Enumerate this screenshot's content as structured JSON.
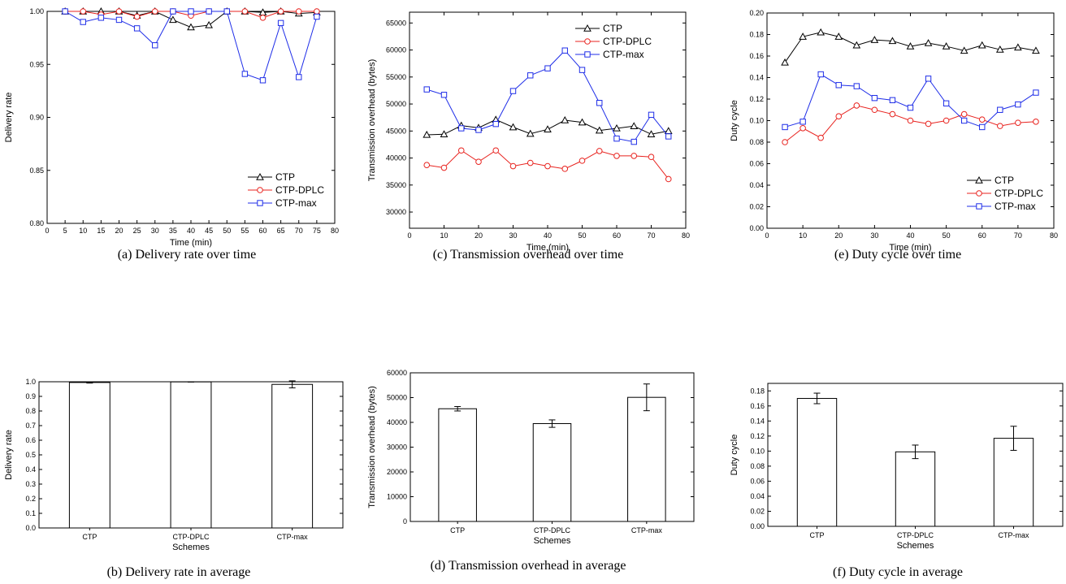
{
  "charts": [
    {
      "type": "line",
      "caption": "(a) Delivery rate over time",
      "xlabel": "Time (min)",
      "ylabel": "Delivery rate",
      "xlim": [
        0,
        80
      ],
      "ylim": [
        0.8,
        1.0
      ],
      "xticks": [
        0,
        5,
        10,
        15,
        20,
        25,
        30,
        35,
        40,
        45,
        50,
        55,
        60,
        65,
        70,
        75,
        80
      ],
      "xtick_labels": [
        "0",
        "5",
        "10",
        "15",
        "20",
        "25",
        "30",
        "35",
        "40",
        "45",
        "50",
        "55",
        "60",
        "65",
        "70",
        "75",
        "80"
      ],
      "yticks": [
        0.8,
        0.85,
        0.9,
        0.95,
        1.0
      ],
      "ytick_labels": [
        "0.80",
        "0.85",
        "0.90",
        "0.95",
        "1.00"
      ],
      "legend_position": "bottom-right",
      "x": [
        5,
        10,
        15,
        20,
        25,
        30,
        35,
        40,
        45,
        50,
        55,
        60,
        65,
        70,
        75
      ],
      "series": [
        {
          "name": "CTP",
          "color": "#000000",
          "marker": "triangle",
          "values": [
            1.0,
            1.0,
            1.0,
            1.0,
            0.996,
            1.0,
            0.992,
            0.985,
            0.987,
            1.0,
            1.0,
            0.999,
            1.0,
            0.998,
            0.999
          ]
        },
        {
          "name": "CTP-DPLC",
          "color": "#e8231f",
          "marker": "circle",
          "values": [
            1.0,
            1.0,
            0.997,
            1.0,
            0.995,
            1.0,
            1.0,
            0.996,
            1.0,
            1.0,
            1.0,
            0.994,
            1.0,
            1.0,
            1.0
          ]
        },
        {
          "name": "CTP-max",
          "color": "#1f2ee8",
          "marker": "square",
          "values": [
            1.0,
            0.99,
            0.994,
            0.992,
            0.984,
            0.968,
            1.0,
            1.0,
            1.0,
            1.0,
            0.941,
            0.935,
            0.989,
            0.938,
            0.995
          ]
        }
      ]
    },
    {
      "type": "bar",
      "caption": "(b) Delivery rate in average",
      "xlabel": "Schemes",
      "ylabel": "Delivery rate",
      "ylim": [
        0.0,
        1.0
      ],
      "yticks": [
        0.0,
        0.1,
        0.2,
        0.3,
        0.4,
        0.5,
        0.6,
        0.7,
        0.8,
        0.9,
        1.0
      ],
      "ytick_labels": [
        "0.0",
        "0.1",
        "0.2",
        "0.3",
        "0.4",
        "0.5",
        "0.6",
        "0.7",
        "0.8",
        "0.9",
        "1.0"
      ],
      "categories": [
        "CTP",
        "CTP-DPLC",
        "CTP-max"
      ],
      "values": [
        0.995,
        0.999,
        0.982
      ],
      "errors": [
        0.004,
        0.001,
        0.024
      ]
    },
    {
      "type": "line",
      "caption": "(c) Transmission overhead over time",
      "xlabel": "Time (min)",
      "ylabel": "Transmission overhead (bytes)",
      "xlim": [
        0,
        80
      ],
      "ylim": [
        27000,
        67000
      ],
      "xticks": [
        0,
        10,
        20,
        30,
        40,
        50,
        60,
        70,
        80
      ],
      "xtick_labels": [
        "0",
        "10",
        "20",
        "30",
        "40",
        "50",
        "60",
        "70",
        "80"
      ],
      "yticks": [
        30000,
        35000,
        40000,
        45000,
        50000,
        55000,
        60000,
        65000
      ],
      "ytick_labels": [
        "30000",
        "35000",
        "40000",
        "45000",
        "50000",
        "55000",
        "60000",
        "65000"
      ],
      "legend_position": "top-right",
      "x": [
        5,
        10,
        15,
        20,
        25,
        30,
        35,
        40,
        45,
        50,
        55,
        60,
        65,
        70,
        75
      ],
      "series": [
        {
          "name": "CTP",
          "color": "#000000",
          "marker": "triangle",
          "values": [
            44300,
            44400,
            46000,
            45600,
            47100,
            45700,
            44500,
            45300,
            47000,
            46600,
            45100,
            45500,
            45900,
            44400,
            45000
          ]
        },
        {
          "name": "CTP-DPLC",
          "color": "#e8231f",
          "marker": "circle",
          "values": [
            38700,
            38200,
            41400,
            39300,
            41400,
            38500,
            39100,
            38500,
            38000,
            39500,
            41300,
            40400,
            40400,
            40200,
            36100
          ]
        },
        {
          "name": "CTP-max",
          "color": "#1f2ee8",
          "marker": "square",
          "values": [
            52700,
            51700,
            45500,
            45200,
            46300,
            52400,
            55300,
            56600,
            59900,
            56300,
            50200,
            43600,
            43000,
            48000,
            44000
          ]
        }
      ]
    },
    {
      "type": "bar",
      "caption": "(d) Transmission overhead in average",
      "xlabel": "Schemes",
      "ylabel": "Transmission overhead (bytes)",
      "ylim": [
        0,
        60000
      ],
      "yticks": [
        0,
        10000,
        20000,
        30000,
        40000,
        50000,
        60000
      ],
      "ytick_labels": [
        "0",
        "10000",
        "20000",
        "30000",
        "40000",
        "50000",
        "60000"
      ],
      "categories": [
        "CTP",
        "CTP-DPLC",
        "CTP-max"
      ],
      "values": [
        45500,
        39500,
        50100
      ],
      "errors": [
        900,
        1500,
        5400
      ]
    },
    {
      "type": "line",
      "caption": "(e) Duty cycle over time",
      "xlabel": "Time (min)",
      "ylabel": "Duty cycle",
      "xlim": [
        0,
        80
      ],
      "ylim": [
        0.0,
        0.2
      ],
      "xticks": [
        0,
        10,
        20,
        30,
        40,
        50,
        60,
        70,
        80
      ],
      "xtick_labels": [
        "0",
        "10",
        "20",
        "30",
        "40",
        "50",
        "60",
        "70",
        "80"
      ],
      "yticks": [
        0.0,
        0.02,
        0.04,
        0.06,
        0.08,
        0.1,
        0.12,
        0.14,
        0.16,
        0.18,
        0.2
      ],
      "ytick_labels": [
        "0.00",
        "0.02",
        "0.04",
        "0.06",
        "0.08",
        "0.10",
        "0.12",
        "0.14",
        "0.16",
        "0.18",
        "0.20"
      ],
      "legend_position": "bottom-right",
      "x": [
        5,
        10,
        15,
        20,
        25,
        30,
        35,
        40,
        45,
        50,
        55,
        60,
        65,
        70,
        75
      ],
      "series": [
        {
          "name": "CTP",
          "color": "#000000",
          "marker": "triangle",
          "values": [
            0.154,
            0.178,
            0.182,
            0.178,
            0.17,
            0.175,
            0.174,
            0.169,
            0.172,
            0.169,
            0.165,
            0.17,
            0.166,
            0.168,
            0.165
          ]
        },
        {
          "name": "CTP-DPLC",
          "color": "#e8231f",
          "marker": "circle",
          "values": [
            0.08,
            0.093,
            0.084,
            0.104,
            0.114,
            0.11,
            0.106,
            0.1,
            0.097,
            0.1,
            0.106,
            0.101,
            0.095,
            0.098,
            0.099
          ]
        },
        {
          "name": "CTP-max",
          "color": "#1f2ee8",
          "marker": "square",
          "values": [
            0.094,
            0.099,
            0.143,
            0.133,
            0.132,
            0.121,
            0.119,
            0.112,
            0.139,
            0.116,
            0.1,
            0.094,
            0.11,
            0.115,
            0.126
          ]
        }
      ]
    },
    {
      "type": "bar",
      "caption": "(f) Duty cycle in average",
      "xlabel": "Schemes",
      "ylabel": "Duty cycle",
      "ylim": [
        0.0,
        0.19
      ],
      "yticks": [
        0.0,
        0.02,
        0.04,
        0.06,
        0.08,
        0.1,
        0.12,
        0.14,
        0.16,
        0.18
      ],
      "ytick_labels": [
        "0.00",
        "0.02",
        "0.04",
        "0.06",
        "0.08",
        "0.10",
        "0.12",
        "0.14",
        "0.16",
        "0.18"
      ],
      "categories": [
        "CTP",
        "CTP-DPLC",
        "CTP-max"
      ],
      "values": [
        0.17,
        0.099,
        0.117
      ],
      "errors": [
        0.007,
        0.009,
        0.016
      ]
    }
  ]
}
